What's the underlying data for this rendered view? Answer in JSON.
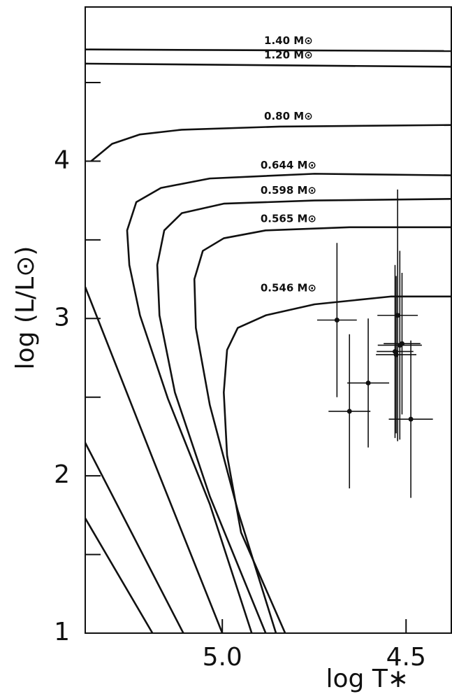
{
  "chart_data": {
    "type": "line",
    "x_label": "log T∗",
    "y_label": "log (L/L⊙)",
    "xlim": [
      5.373,
      4.375
    ],
    "ylim": [
      1,
      4.98
    ],
    "xticks": [
      {
        "value": 5.0,
        "label": "5.0"
      },
      4.5
    ],
    "yticks": [
      1,
      2,
      3,
      4
    ],
    "yminorticks": [
      1.5,
      2.5,
      3.5,
      4.5
    ],
    "color": "#111111",
    "series": [
      {
        "name": "1.40 M⊙",
        "x": [
          5.373,
          4.375
        ],
        "values": [
          4.71,
          4.7
        ]
      },
      {
        "name": "1.20 M⊙",
        "x": [
          5.373,
          4.375
        ],
        "values": [
          4.62,
          4.6
        ]
      },
      {
        "name": "0.80 M⊙",
        "x": [
          5.357,
          5.3,
          5.224,
          5.11,
          4.844,
          4.375
        ],
        "values": [
          4.0,
          4.11,
          4.17,
          4.2,
          4.22,
          4.23
        ]
      },
      {
        "name": "0.644 M⊙",
        "x": [
          4.375,
          4.749,
          5.034,
          5.167,
          5.234,
          5.259,
          5.253,
          5.224,
          5.148,
          5.034,
          4.92
        ],
        "values": [
          3.91,
          3.92,
          3.89,
          3.83,
          3.74,
          3.56,
          3.34,
          3.02,
          2.49,
          1.82,
          1.0
        ]
      },
      {
        "name": "0.598 M⊙",
        "x": [
          4.375,
          4.749,
          4.996,
          5.11,
          5.158,
          5.177,
          5.171,
          5.129,
          5.034,
          4.882
        ],
        "values": [
          3.76,
          3.75,
          3.73,
          3.67,
          3.56,
          3.34,
          3.02,
          2.53,
          1.87,
          1.0
        ]
      },
      {
        "name": "0.565 M⊙",
        "x": [
          4.375,
          4.654,
          4.882,
          4.996,
          5.053,
          5.076,
          5.072,
          5.034,
          4.958,
          4.854
        ],
        "values": [
          3.58,
          3.58,
          3.56,
          3.51,
          3.43,
          3.25,
          2.94,
          2.45,
          1.78,
          1.0
        ]
      },
      {
        "name": "0.546 M⊙",
        "x": [
          4.375,
          4.54,
          4.749,
          4.882,
          4.958,
          4.987,
          4.996,
          4.987,
          4.949,
          4.829
        ],
        "values": [
          3.14,
          3.14,
          3.09,
          3.02,
          2.94,
          2.8,
          2.53,
          2.13,
          1.64,
          1.0
        ]
      },
      {
        "x": [
          5.373,
          5.186,
          5.0
        ],
        "values": [
          3.2,
          2.09,
          1.0
        ]
      },
      {
        "x": [
          5.373,
          5.106
        ],
        "values": [
          2.21,
          1.0
        ]
      },
      {
        "x": [
          5.373,
          5.19
        ],
        "values": [
          1.73,
          1.0
        ]
      }
    ],
    "points": {
      "type": "scatter",
      "x": [
        4.688,
        4.603,
        4.654,
        4.523,
        4.517,
        4.53,
        4.527,
        4.487,
        4.511
      ],
      "values": [
        2.99,
        2.59,
        2.41,
        3.02,
        2.83,
        2.79,
        2.77,
        2.36,
        2.84
      ],
      "xerr": [
        0.054,
        0.057,
        0.057,
        0.055,
        0.06,
        0.05,
        0.055,
        0.06,
        0.05
      ],
      "yerr": [
        0.49,
        0.41,
        0.49,
        0.8,
        0.6,
        0.55,
        0.5,
        0.5,
        0.45
      ]
    }
  }
}
